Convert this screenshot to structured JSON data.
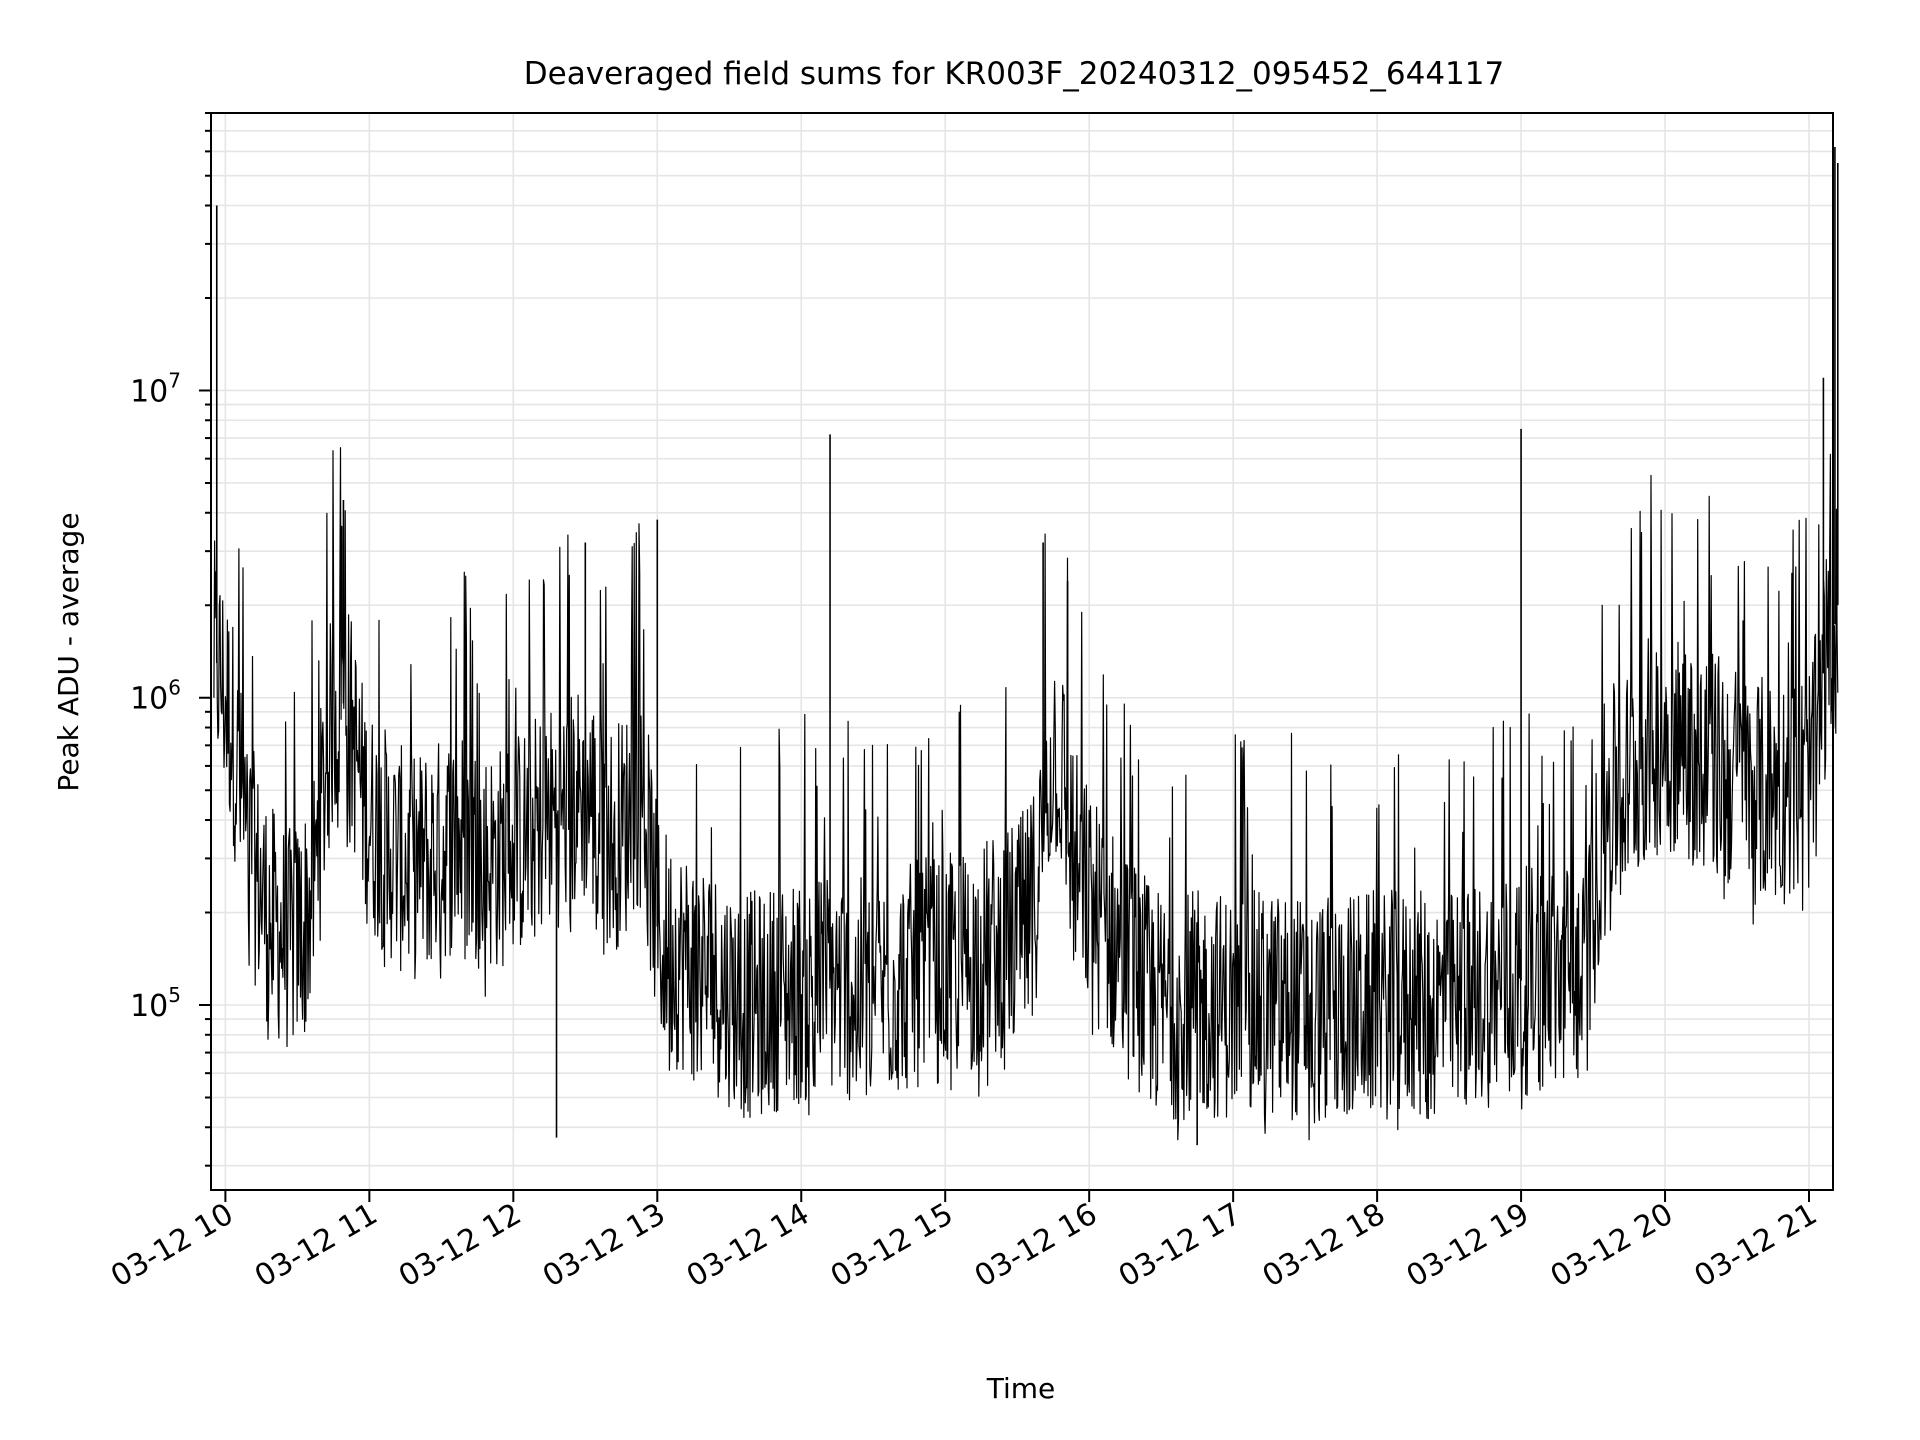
{
  "chart_data": {
    "type": "line",
    "title": "Deaveraged field sums for KR003F_20240312_095452_644117",
    "xlabel": "Time",
    "ylabel": "Peak ADU - average",
    "yscale": "log",
    "grid": true,
    "line_color": "#000000",
    "xlim": [
      "2024-03-12 09:54",
      "2024-03-12 21:10"
    ],
    "ylim": [
      25000,
      80000000
    ],
    "x_ticks": [
      "03-12 10",
      "03-12 11",
      "03-12 12",
      "03-12 13",
      "03-12 14",
      "03-12 15",
      "03-12 16",
      "03-12 17",
      "03-12 18",
      "03-12 19",
      "03-12 20",
      "03-12 21"
    ],
    "y_ticks": [
      {
        "base": "10",
        "exp": "5",
        "value": 100000
      },
      {
        "base": "10",
        "exp": "6",
        "value": 1000000
      },
      {
        "base": "10",
        "exp": "7",
        "value": 10000000
      }
    ],
    "series": [
      {
        "x": [
          9.92,
          9.96,
          10.0,
          10.05,
          10.1,
          10.15,
          10.2,
          10.25,
          10.3,
          10.35,
          10.4,
          10.45,
          10.5,
          10.55,
          10.6,
          10.65,
          10.7,
          10.75,
          10.8,
          10.85,
          10.9,
          10.95,
          11.0,
          11.1,
          11.2,
          11.3,
          11.4,
          11.5,
          11.6,
          11.7,
          11.8,
          11.9,
          12.0,
          12.1,
          12.2,
          12.3,
          12.4,
          12.5,
          12.6,
          12.7,
          12.8,
          12.85,
          12.9,
          12.95,
          13.0,
          13.1,
          13.2,
          13.3,
          13.4,
          13.5,
          13.6,
          13.7,
          13.8,
          13.9,
          14.0,
          14.1,
          14.2,
          14.3,
          14.4,
          14.5,
          14.6,
          14.7,
          14.8,
          14.9,
          15.0,
          15.1,
          15.2,
          15.3,
          15.4,
          15.5,
          15.6,
          15.65,
          15.7,
          15.75,
          15.8,
          15.85,
          15.9,
          15.95,
          16.0,
          16.1,
          16.2,
          16.3,
          16.4,
          16.5,
          16.6,
          16.7,
          16.8,
          16.9,
          17.0,
          17.1,
          17.2,
          17.3,
          17.4,
          17.5,
          17.6,
          17.7,
          17.8,
          17.9,
          18.0,
          18.1,
          18.2,
          18.3,
          18.4,
          18.5,
          18.6,
          18.7,
          18.8,
          18.9,
          19.0,
          19.1,
          19.2,
          19.3,
          19.4,
          19.45,
          19.5,
          19.55,
          19.6,
          19.7,
          19.8,
          19.9,
          20.0,
          20.1,
          20.2,
          20.3,
          20.4,
          20.5,
          20.6,
          20.7,
          20.8,
          20.9,
          21.0,
          21.05,
          21.1,
          21.15,
          21.2
        ],
        "y": [
          1400000,
          1200000,
          1000000,
          800000,
          500000,
          350000,
          280000,
          230000,
          200000,
          180000,
          170000,
          160000,
          170000,
          190000,
          220000,
          350000,
          600000,
          900000,
          1000000,
          900000,
          700000,
          500000,
          400000,
          350000,
          300000,
          280000,
          300000,
          320000,
          350000,
          330000,
          300000,
          300000,
          330000,
          350000,
          400000,
          420000,
          450000,
          500000,
          400000,
          350000,
          400000,
          500000,
          450000,
          300000,
          180000,
          150000,
          140000,
          130000,
          120000,
          110000,
          100000,
          100000,
          105000,
          110000,
          110000,
          115000,
          120000,
          115000,
          110000,
          110000,
          115000,
          120000,
          125000,
          130000,
          130000,
          135000,
          140000,
          150000,
          160000,
          170000,
          200000,
          280000,
          500000,
          700000,
          650000,
          400000,
          300000,
          250000,
          220000,
          180000,
          150000,
          130000,
          110000,
          100000,
          100000,
          100000,
          100000,
          100000,
          100000,
          100000,
          100000,
          100000,
          100000,
          95000,
          95000,
          95000,
          100000,
          100000,
          100000,
          100000,
          100000,
          100000,
          100000,
          100000,
          105000,
          110000,
          110000,
          115000,
          120000,
          120000,
          120000,
          125000,
          130000,
          130000,
          200000,
          350000,
          450000,
          500000,
          600000,
          700000,
          750000,
          700000,
          650000,
          600000,
          600000,
          550000,
          500000,
          500000,
          500000,
          500000,
          550000,
          700000,
          1200000,
          1400000,
          2000000
        ]
      }
    ],
    "spikes": [
      {
        "x": 9.94,
        "y": 40000000
      },
      {
        "x": 10.82,
        "y": 4400000
      },
      {
        "x": 12.3,
        "y": 37000
      },
      {
        "x": 12.5,
        "y": 3200000
      },
      {
        "x": 13.0,
        "y": 3800000
      },
      {
        "x": 14.2,
        "y": 7200000
      },
      {
        "x": 15.68,
        "y": 3200000
      },
      {
        "x": 15.85,
        "y": 2400000
      },
      {
        "x": 16.75,
        "y": 35000
      },
      {
        "x": 19.0,
        "y": 7500000
      },
      {
        "x": 21.1,
        "y": 11000000
      },
      {
        "x": 21.18,
        "y": 62000000
      },
      {
        "x": 21.2,
        "y": 55000000
      }
    ]
  }
}
